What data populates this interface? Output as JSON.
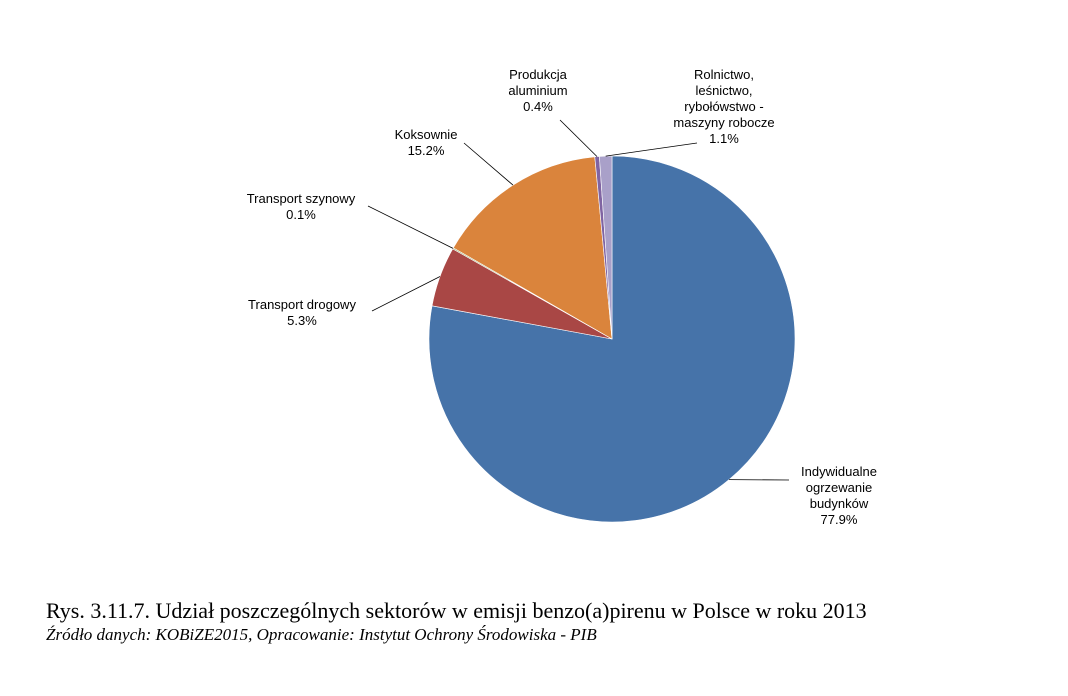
{
  "chart_data": {
    "type": "pie",
    "title": "",
    "unit": "%",
    "slices": [
      {
        "name_lines": [
          "Indywidualne",
          "ogrzewanie",
          "budynków"
        ],
        "value": 77.9,
        "value_label": "77.9%",
        "color": "#4673A9"
      },
      {
        "name_lines": [
          "Transport drogowy"
        ],
        "value": 5.3,
        "value_label": "5.3%",
        "color": "#A94745"
      },
      {
        "name_lines": [
          "Transport szynowy"
        ],
        "value": 0.1,
        "value_label": "0.1%",
        "color": "#8AA154"
      },
      {
        "name_lines": [
          "Koksownie"
        ],
        "value": 15.2,
        "value_label": "15.2%",
        "color": "#DA843C"
      },
      {
        "name_lines": [
          "Produkcja",
          "aluminium"
        ],
        "value": 0.4,
        "value_label": "0.4%",
        "color": "#8064A2"
      },
      {
        "name_lines": [
          "Rolnictwo,",
          "leśnictwo,",
          "rybołówstwo -",
          "maszyny robocze"
        ],
        "value": 1.1,
        "value_label": "1.1%",
        "color": "#A9A0C9"
      }
    ],
    "start_angle": "12 o'clock",
    "direction": "clockwise",
    "legend": "none",
    "labels": "outside with leader lines"
  },
  "caption": {
    "title": "Rys. 3.11.7. Udział poszczególnych sektorów w emisji benzo(a)pirenu w Polsce w roku 2013",
    "source": "Źródło danych: KOBiZE2015, Opracowanie: Instytut Ochrony Środowiska - PIB"
  }
}
